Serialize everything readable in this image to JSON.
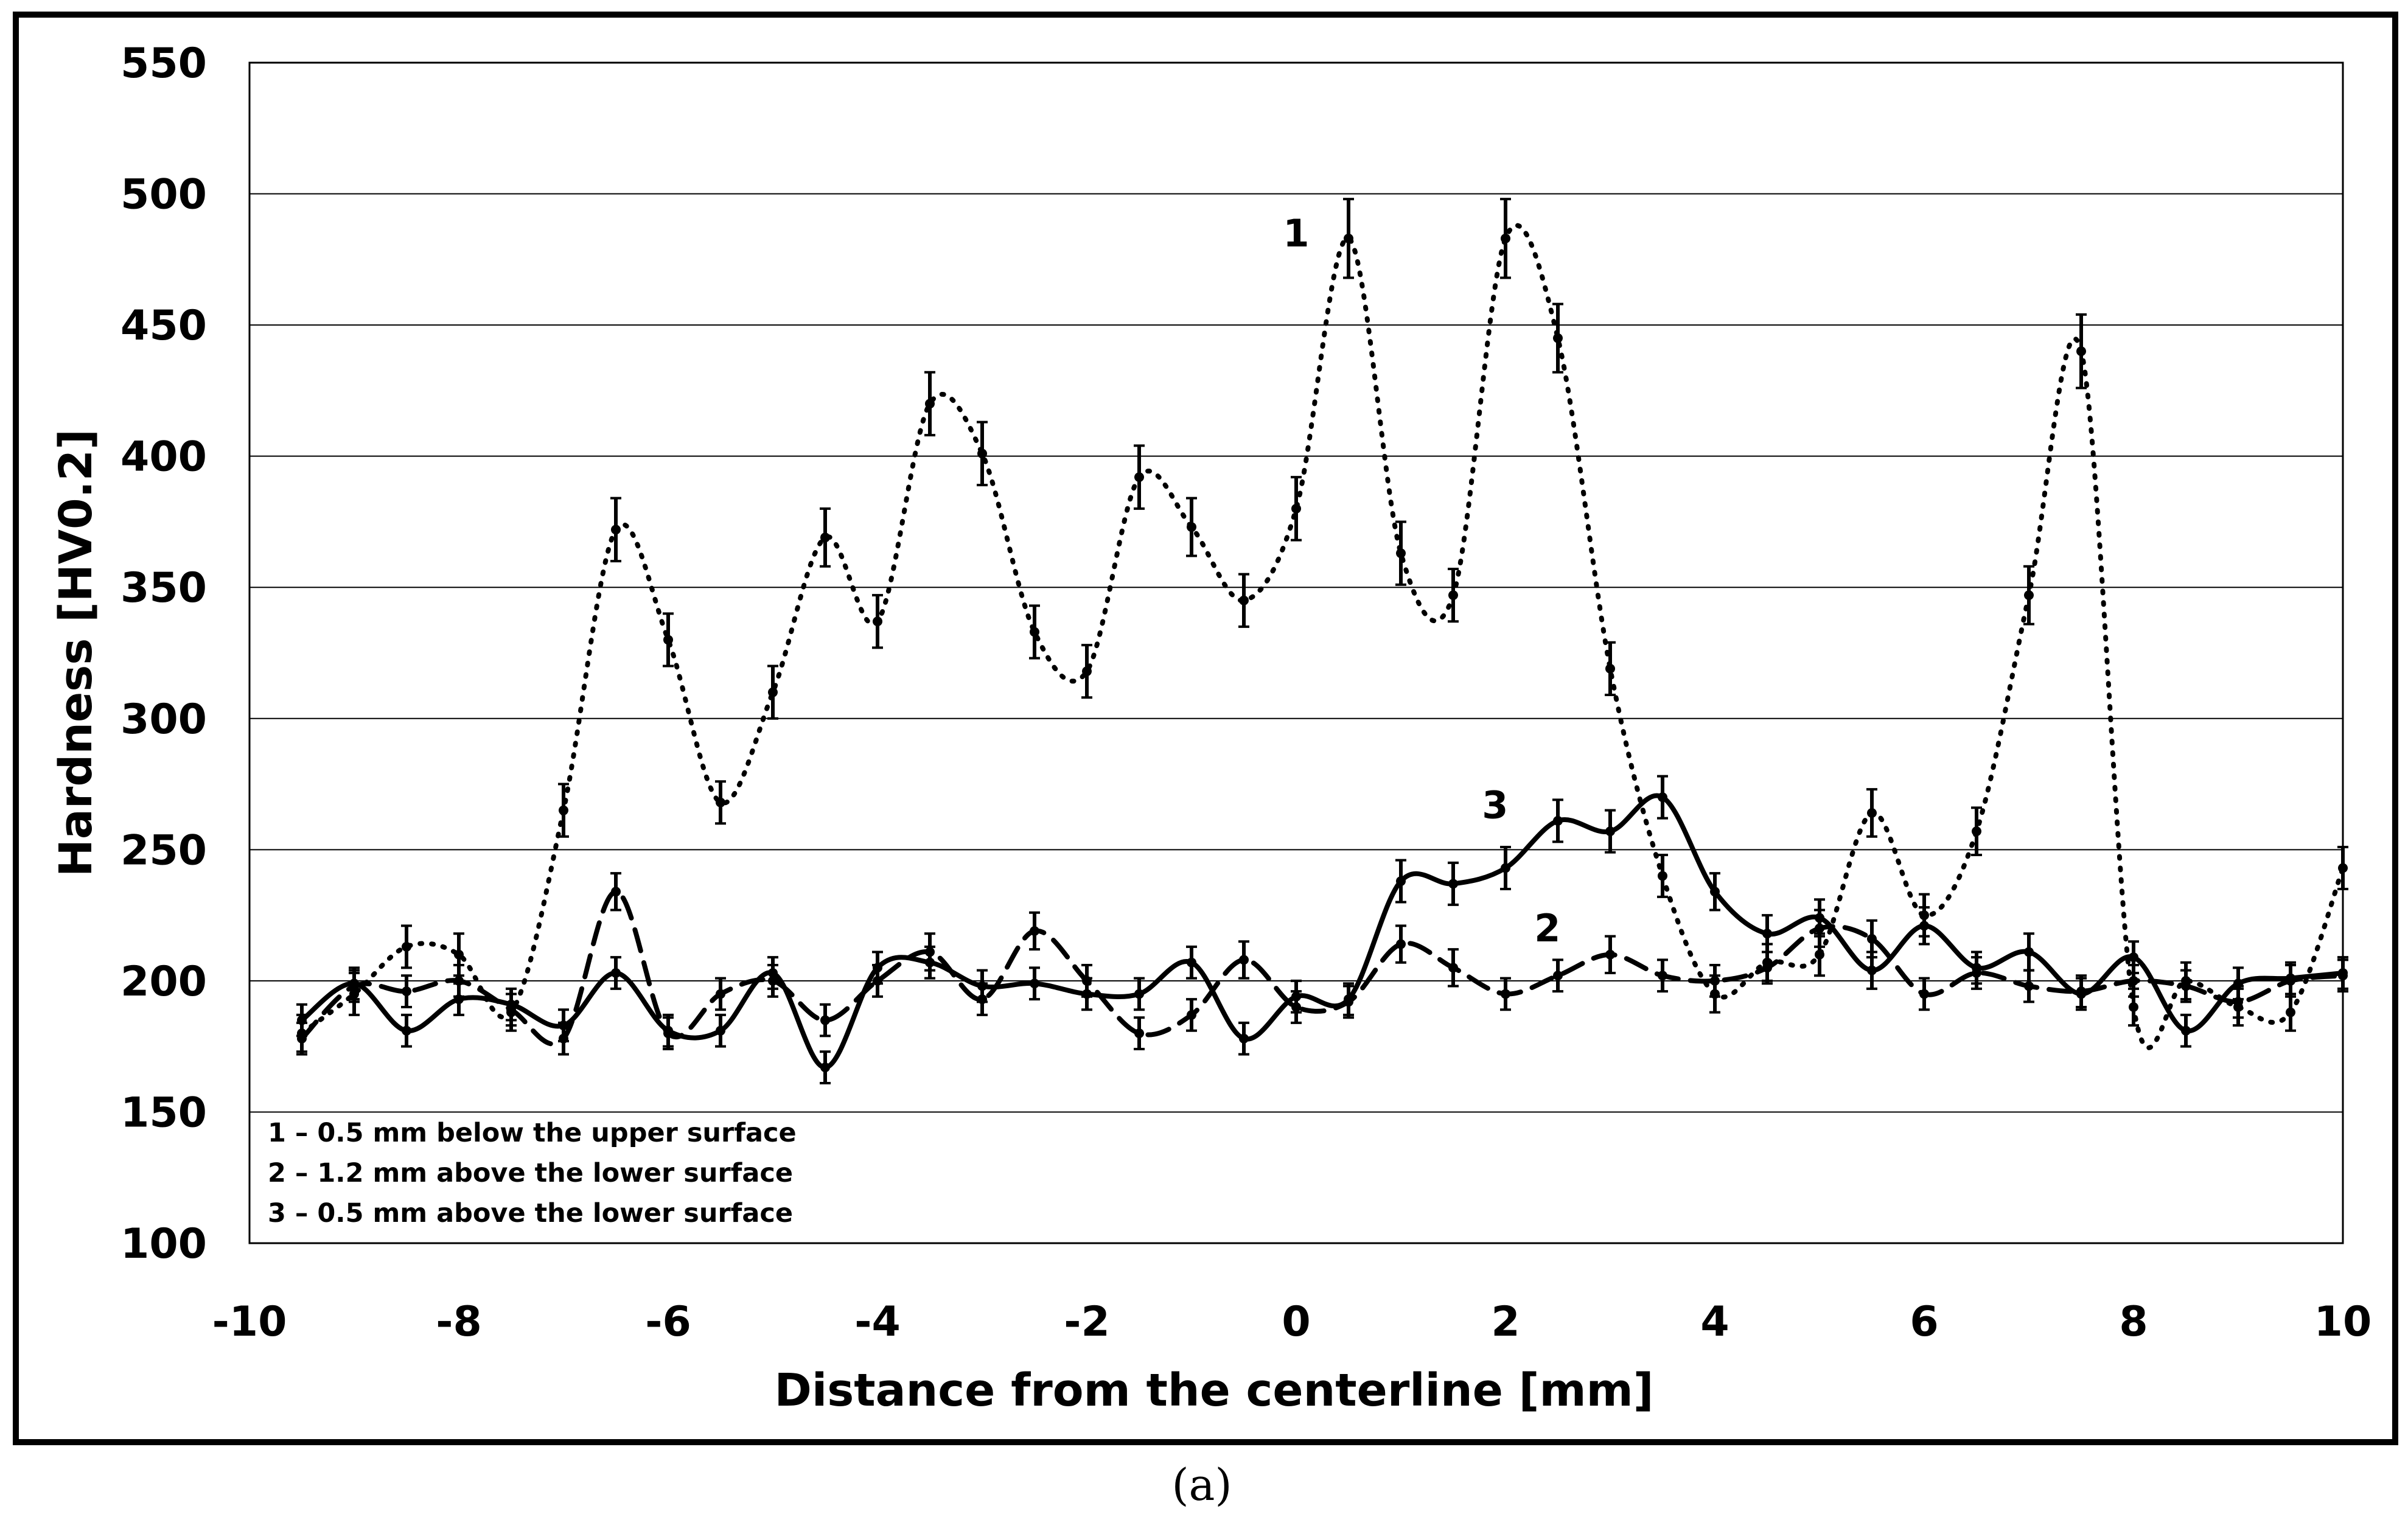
{
  "chart_data": {
    "type": "line",
    "title": "",
    "xlabel": "Distance from the centerline [mm]",
    "ylabel": "Hardness [HV0.2]",
    "xlim": [
      -10,
      10
    ],
    "ylim": [
      100,
      550
    ],
    "xticks": [
      -10,
      -8,
      -6,
      -4,
      -2,
      0,
      2,
      4,
      6,
      8,
      10
    ],
    "yticks": [
      100,
      150,
      200,
      250,
      300,
      350,
      400,
      450,
      500,
      550
    ],
    "grid": "horizontal",
    "legend_position": "bottom-left",
    "legend": [
      "1 – 0.5 mm below the upper surface",
      "2 – 1.2 mm above the lower surface",
      "3 – 0.5 mm above the lower surface"
    ],
    "caption": "(a)",
    "x": [
      -9.5,
      -9,
      -8.5,
      -8,
      -7.5,
      -7,
      -6.5,
      -6,
      -5.5,
      -5,
      -4.5,
      -4,
      -3.5,
      -3,
      -2.5,
      -2,
      -1.5,
      -1,
      -0.5,
      0,
      0.5,
      1,
      1.5,
      2,
      2.5,
      3,
      3.5,
      4,
      4.5,
      5,
      5.5,
      6,
      6.5,
      7,
      7.5,
      8,
      8.5,
      9,
      9.5,
      10
    ],
    "series": [
      {
        "name": "1",
        "style": "dotted",
        "label_at": {
          "x": 0,
          "y": 480
        },
        "values": [
          180,
          195,
          213,
          210,
          188,
          265,
          372,
          330,
          268,
          310,
          369,
          337,
          420,
          401,
          333,
          318,
          392,
          373,
          345,
          380,
          483,
          363,
          347,
          483,
          445,
          319,
          240,
          195,
          207,
          210,
          264,
          225,
          257,
          347,
          440,
          190,
          200,
          190,
          188,
          243
        ],
        "errors": [
          7,
          8,
          8,
          8,
          7,
          10,
          12,
          10,
          8,
          10,
          11,
          10,
          12,
          12,
          10,
          10,
          12,
          11,
          10,
          12,
          15,
          12,
          10,
          15,
          13,
          10,
          8,
          7,
          7,
          8,
          9,
          8,
          9,
          11,
          14,
          7,
          7,
          7,
          7,
          8
        ]
      },
      {
        "name": "2",
        "style": "dashed",
        "label_at": {
          "x": 2.4,
          "y": 215
        },
        "values": [
          178,
          198,
          196,
          200,
          189,
          178,
          234,
          180,
          195,
          200,
          185,
          200,
          211,
          193,
          219,
          200,
          180,
          187,
          208,
          190,
          192,
          214,
          205,
          195,
          202,
          210,
          202,
          200,
          205,
          220,
          216,
          195,
          203,
          198,
          196,
          200,
          198,
          192,
          200,
          202
        ],
        "errors": [
          6,
          6,
          6,
          6,
          6,
          6,
          7,
          6,
          6,
          6,
          6,
          6,
          7,
          6,
          7,
          6,
          6,
          6,
          7,
          6,
          6,
          7,
          7,
          6,
          6,
          7,
          6,
          6,
          6,
          7,
          7,
          6,
          6,
          6,
          6,
          6,
          6,
          6,
          6,
          6
        ]
      },
      {
        "name": "3",
        "style": "solid",
        "label_at": {
          "x": 1.9,
          "y": 262
        },
        "values": [
          185,
          199,
          181,
          193,
          191,
          183,
          203,
          181,
          181,
          203,
          167,
          205,
          207,
          198,
          199,
          195,
          195,
          207,
          178,
          194,
          193,
          238,
          237,
          243,
          261,
          257,
          270,
          234,
          218,
          224,
          204,
          221,
          205,
          211,
          195,
          209,
          181,
          199,
          201,
          203
        ],
        "errors": [
          6,
          6,
          6,
          6,
          6,
          6,
          6,
          6,
          6,
          6,
          6,
          6,
          6,
          6,
          6,
          6,
          6,
          6,
          6,
          6,
          6,
          8,
          8,
          8,
          8,
          8,
          8,
          7,
          7,
          7,
          7,
          7,
          6,
          7,
          6,
          6,
          6,
          6,
          6,
          6
        ]
      }
    ]
  }
}
